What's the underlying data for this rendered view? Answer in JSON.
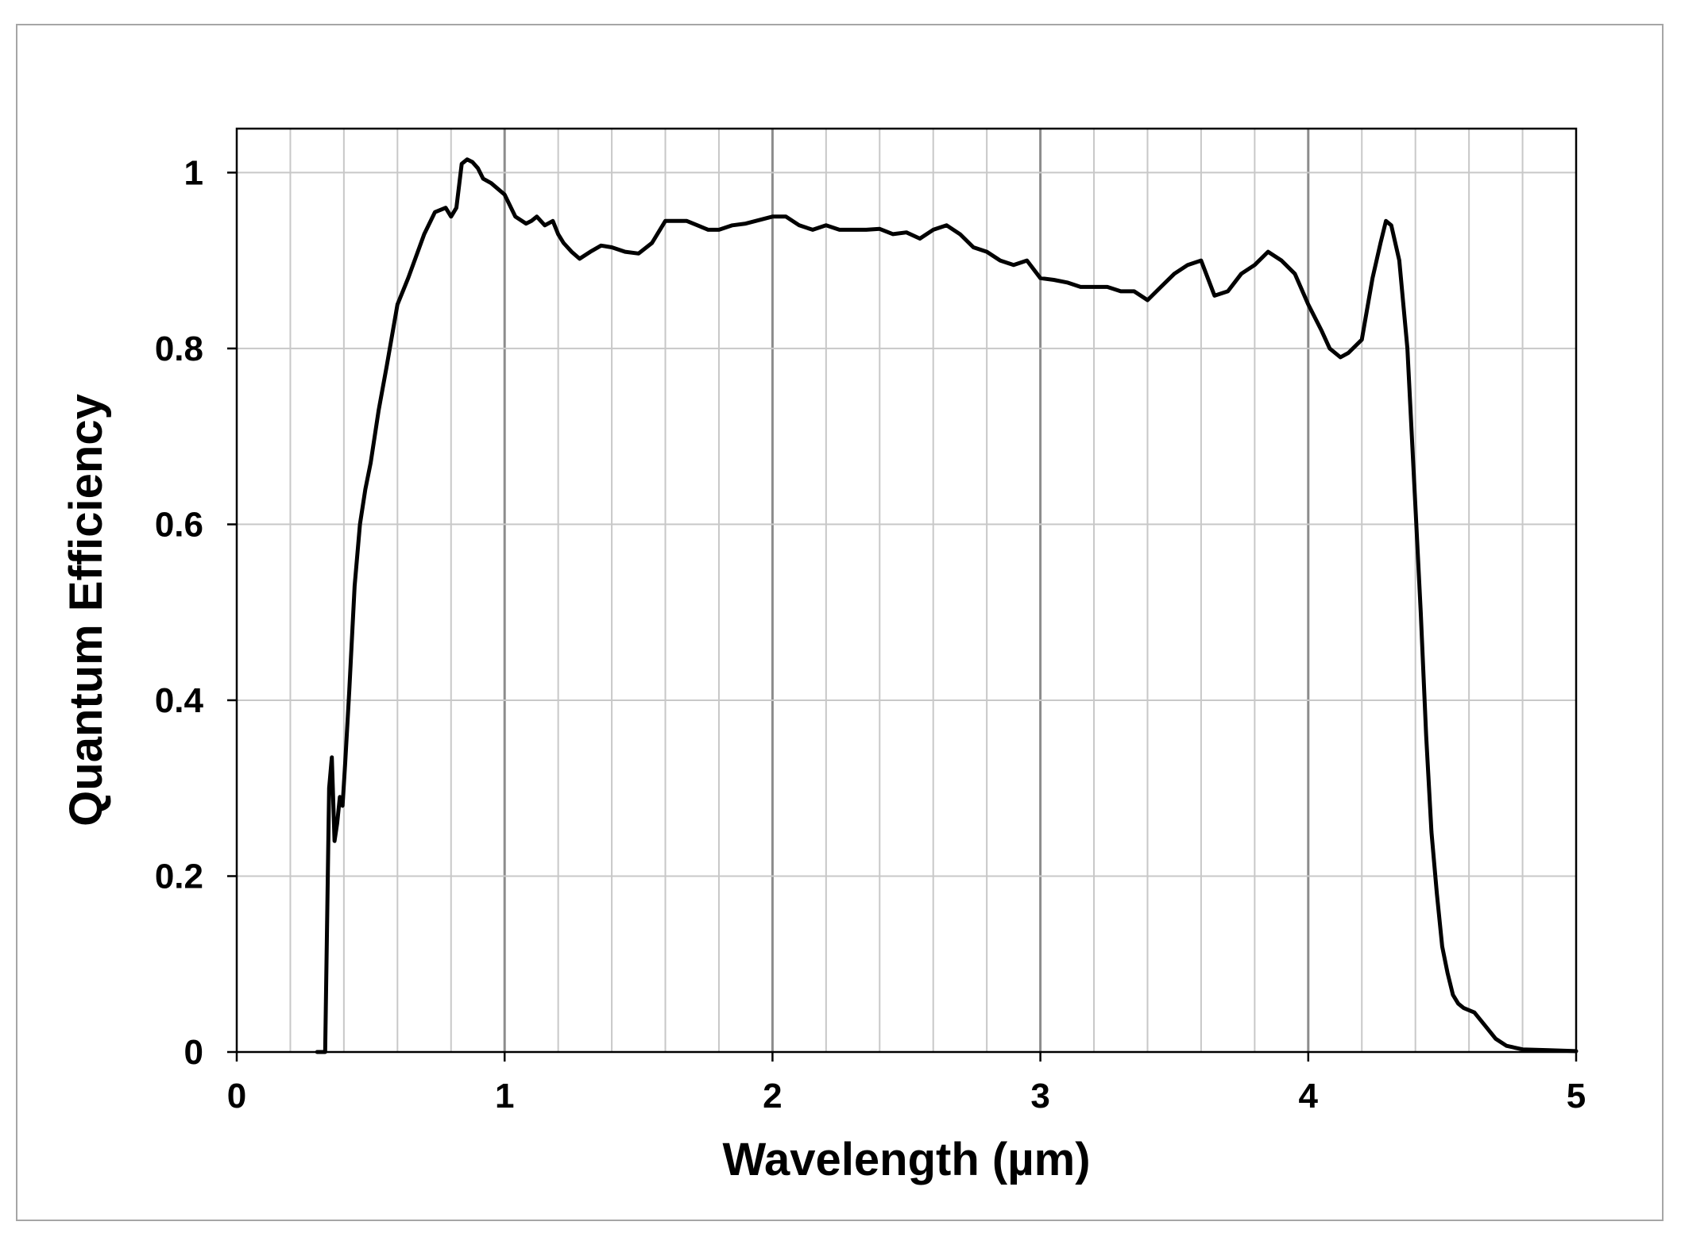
{
  "chart_data": {
    "type": "line",
    "title": "",
    "xlabel": "Wavelength (µm)",
    "ylabel": "Quantum Efficiency",
    "xlim": [
      0,
      5
    ],
    "ylim": [
      0,
      1.05
    ],
    "x_ticks": [
      0,
      1,
      2,
      3,
      4,
      5
    ],
    "x_tick_labels": [
      "0",
      "1",
      "2",
      "3",
      "4",
      "5"
    ],
    "y_ticks": [
      0,
      0.2,
      0.4,
      0.6,
      0.8,
      1
    ],
    "y_tick_labels": [
      "0",
      "0.2",
      "0.4",
      "0.6",
      "0.8",
      "1"
    ],
    "grid": {
      "major": true,
      "minor_x_step": 0.2
    },
    "legend": "none",
    "colors": {
      "line": "#000000",
      "grid_minor": "#c8c8c8",
      "grid_major": "#8c8c8c",
      "frame": "#000000",
      "border": "#a6a6a6"
    },
    "series": [
      {
        "x": [
          0.3,
          0.33,
          0.345,
          0.355,
          0.365,
          0.375,
          0.385,
          0.395,
          0.405,
          0.42,
          0.44,
          0.46,
          0.48,
          0.5,
          0.53,
          0.56,
          0.6,
          0.64,
          0.7,
          0.74,
          0.78,
          0.8,
          0.82,
          0.84,
          0.86,
          0.88,
          0.9,
          0.92,
          0.95,
          1.0,
          1.04,
          1.08,
          1.1,
          1.12,
          1.15,
          1.18,
          1.2,
          1.22,
          1.25,
          1.28,
          1.32,
          1.36,
          1.4,
          1.45,
          1.5,
          1.55,
          1.6,
          1.64,
          1.68,
          1.72,
          1.76,
          1.8,
          1.85,
          1.9,
          1.95,
          2.0,
          2.05,
          2.1,
          2.15,
          2.2,
          2.25,
          2.3,
          2.35,
          2.4,
          2.45,
          2.5,
          2.55,
          2.6,
          2.65,
          2.7,
          2.75,
          2.8,
          2.85,
          2.9,
          2.95,
          3.0,
          3.05,
          3.1,
          3.15,
          3.2,
          3.25,
          3.3,
          3.35,
          3.4,
          3.45,
          3.5,
          3.55,
          3.6,
          3.65,
          3.7,
          3.75,
          3.8,
          3.85,
          3.9,
          3.95,
          4.0,
          4.05,
          4.08,
          4.12,
          4.15,
          4.2,
          4.24,
          4.27,
          4.29,
          4.31,
          4.34,
          4.37,
          4.4,
          4.42,
          4.44,
          4.46,
          4.48,
          4.5,
          4.52,
          4.54,
          4.56,
          4.58,
          4.62,
          4.66,
          4.7,
          4.74,
          4.8,
          4.9,
          5.0
        ],
        "y": [
          0.0,
          0.0,
          0.3,
          0.335,
          0.24,
          0.26,
          0.29,
          0.28,
          0.33,
          0.41,
          0.53,
          0.6,
          0.64,
          0.67,
          0.73,
          0.78,
          0.85,
          0.88,
          0.93,
          0.955,
          0.96,
          0.95,
          0.96,
          1.01,
          1.015,
          1.012,
          1.005,
          0.993,
          0.988,
          0.975,
          0.95,
          0.942,
          0.945,
          0.95,
          0.94,
          0.945,
          0.93,
          0.92,
          0.91,
          0.902,
          0.91,
          0.917,
          0.915,
          0.91,
          0.908,
          0.92,
          0.945,
          0.945,
          0.945,
          0.94,
          0.935,
          0.935,
          0.94,
          0.942,
          0.946,
          0.95,
          0.95,
          0.94,
          0.935,
          0.94,
          0.935,
          0.935,
          0.935,
          0.936,
          0.93,
          0.932,
          0.925,
          0.935,
          0.94,
          0.93,
          0.915,
          0.91,
          0.9,
          0.895,
          0.9,
          0.88,
          0.878,
          0.875,
          0.87,
          0.87,
          0.87,
          0.865,
          0.865,
          0.855,
          0.87,
          0.885,
          0.895,
          0.9,
          0.86,
          0.865,
          0.885,
          0.895,
          0.91,
          0.9,
          0.885,
          0.85,
          0.82,
          0.8,
          0.79,
          0.795,
          0.81,
          0.88,
          0.92,
          0.945,
          0.94,
          0.9,
          0.8,
          0.62,
          0.5,
          0.36,
          0.25,
          0.18,
          0.12,
          0.09,
          0.065,
          0.055,
          0.05,
          0.045,
          0.03,
          0.015,
          0.007,
          0.003,
          0.002,
          0.001
        ]
      }
    ]
  }
}
